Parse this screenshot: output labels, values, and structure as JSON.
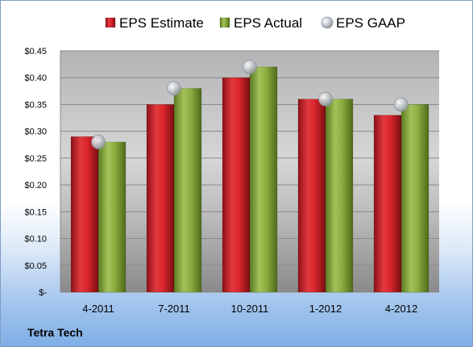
{
  "company": "Tetra Tech",
  "chart_data": {
    "type": "bar",
    "categories": [
      "4-2011",
      "7-2011",
      "10-2011",
      "1-2012",
      "4-2012"
    ],
    "series": [
      {
        "name": "EPS Estimate",
        "type": "bar",
        "color": "#d9262c",
        "values": [
          0.29,
          0.35,
          0.4,
          0.36,
          0.33
        ]
      },
      {
        "name": "EPS Actual",
        "type": "bar",
        "color": "#8cae3f",
        "values": [
          0.28,
          0.38,
          0.42,
          0.36,
          0.35
        ]
      },
      {
        "name": "EPS GAAP",
        "type": "scatter",
        "color": "#b8c0c8",
        "values": [
          0.28,
          0.38,
          0.42,
          0.36,
          0.35
        ]
      }
    ],
    "yticks": [
      0,
      0.05,
      0.1,
      0.15,
      0.2,
      0.25,
      0.3,
      0.35,
      0.4,
      0.45
    ],
    "ytick_labels": [
      "$-",
      "$0.05",
      "$0.10",
      "$0.15",
      "$0.20",
      "$0.25",
      "$0.30",
      "$0.35",
      "$0.40",
      "$0.45"
    ],
    "ylim": [
      0,
      0.45
    ],
    "grid": true,
    "legend": "top"
  }
}
